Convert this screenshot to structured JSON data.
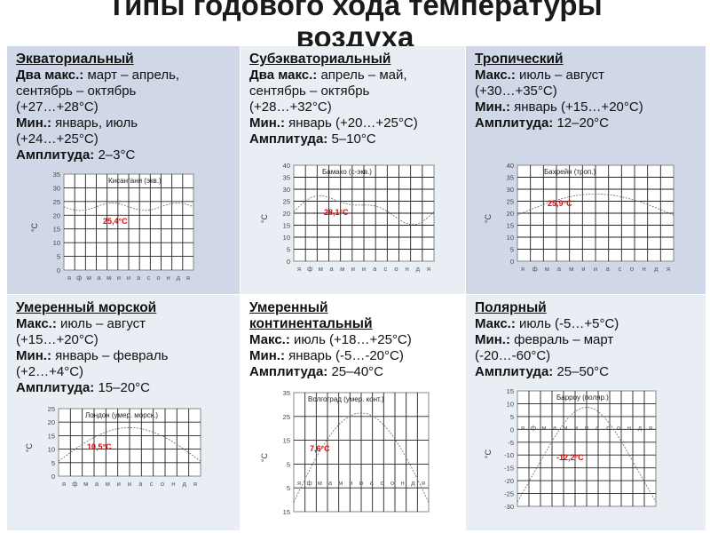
{
  "title": {
    "line1": "Типы годового хода температуры",
    "line2": "воздуха"
  },
  "months": [
    "я",
    "ф",
    "м",
    "а",
    "м",
    "и",
    "и",
    "а",
    "с",
    "о",
    "н",
    "д",
    "я"
  ],
  "cells": [
    {
      "head": "Экваториальный",
      "lines": [
        {
          "b": "Два макс.:",
          "t": " март – апрель,"
        },
        {
          "b": "",
          "t": "сентябрь – октябрь"
        },
        {
          "b": "",
          "t": "(+27…+28°С)"
        },
        {
          "b": "Мин.:",
          "t": " январь, июль"
        },
        {
          "b": "",
          "t": "(+24…+25°С)"
        },
        {
          "b": "Амплитуда:",
          "t": " 2–3°С"
        }
      ],
      "chart": {
        "city": "Кисангани (экв.)",
        "note": "25,4°С",
        "y_axis": "°С",
        "ticks": [
          "35",
          "30",
          "25",
          "20",
          "15",
          "10",
          "5",
          "0"
        ]
      }
    },
    {
      "head": "Субэкваториальный",
      "lines": [
        {
          "b": "Два макс.:",
          "t": " апрель – май,"
        },
        {
          "b": "",
          "t": "сентябрь – октябрь"
        },
        {
          "b": "",
          "t": "(+28…+32°С)"
        },
        {
          "b": "Мин.:",
          "t": " январь (+20…+25°С)"
        },
        {
          "b": "Амплитуда:",
          "t": " 5–10°С"
        }
      ],
      "chart": {
        "city": "Бамако (с-экв.)",
        "note": "28,1°С",
        "y_axis": "°С",
        "ticks": [
          "40",
          "35",
          "30",
          "25",
          "20",
          "15",
          "10",
          "5",
          "0"
        ]
      }
    },
    {
      "head": "Тропический",
      "lines": [
        {
          "b": "Макс.:",
          "t": " июль – август"
        },
        {
          "b": "",
          "t": "(+30…+35°С)"
        },
        {
          "b": "Мин.:",
          "t": " январь (+15…+20°С)"
        },
        {
          "b": "Амплитуда:",
          "t": " 12–20°С"
        }
      ],
      "chart": {
        "city": "Бахрейн (троп.)",
        "note": "25,9°С",
        "y_axis": "°С",
        "ticks": [
          "40",
          "35",
          "30",
          "25",
          "20",
          "15",
          "10",
          "5",
          "0"
        ]
      }
    },
    {
      "head": "Умеренный морской",
      "lines": [
        {
          "b": "Макс.:",
          "t": " июль – август"
        },
        {
          "b": "",
          "t": "(+15…+20°С)"
        },
        {
          "b": "Мин.:",
          "t": " январь – февраль"
        },
        {
          "b": "",
          "t": "(+2…+4°С)"
        },
        {
          "b": "Амплитуда:",
          "t": " 15–20°С"
        }
      ],
      "chart": {
        "city": "Лондон (умер. морск.)",
        "note": "10,5°С",
        "y_axis": "°С",
        "ticks": [
          "25",
          "20",
          "15",
          "10",
          "5",
          "0"
        ]
      }
    },
    {
      "head": "Умеренный",
      "head2": "континентальный",
      "lines": [
        {
          "b": "Макс.:",
          "t": " июль (+18…+25°С)"
        },
        {
          "b": "Мин.:",
          "t": " январь (-5…-20°С)"
        },
        {
          "b": "Амплитуда:",
          "t": " 25–40°С"
        }
      ],
      "chart": {
        "city": "Волгоград (умер. конт.)",
        "note": "7,6°С",
        "y_axis": "°С",
        "ticks": [
          "35",
          "25",
          "15",
          "5",
          "5",
          "15"
        ]
      }
    },
    {
      "head": "Полярный",
      "lines": [
        {
          "b": "Макс.:",
          "t": " июль (-5…+5°С)"
        },
        {
          "b": "Мин.:",
          "t": " февраль – март"
        },
        {
          "b": "",
          "t": "(-20…-60°С)"
        },
        {
          "b": "Амплитуда:",
          "t": " 25–50°С"
        }
      ],
      "chart": {
        "city": "Барроу (поляр.)",
        "note": "-12,2°С",
        "y_axis": "°С",
        "ticks": [
          "15",
          "10",
          "5",
          "0",
          "-5",
          "-10",
          "-15",
          "-20",
          "-25",
          "-30"
        ]
      }
    }
  ]
}
